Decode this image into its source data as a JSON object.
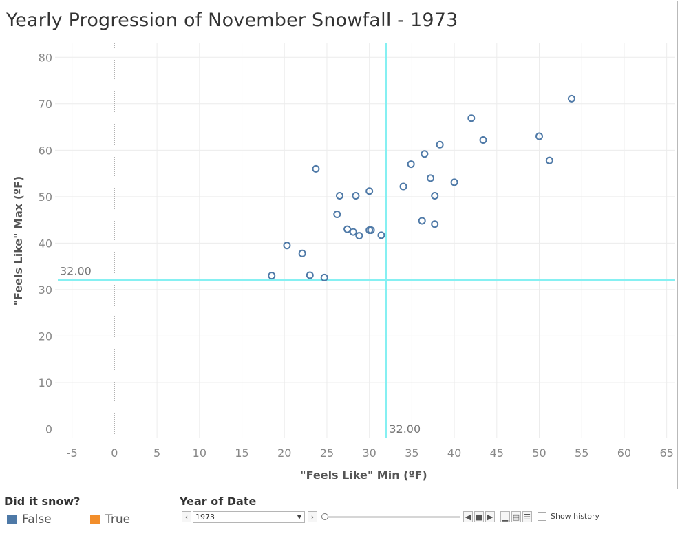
{
  "chart_data": {
    "type": "scatter",
    "title": "Yearly Progression of November Snowfall - 1973",
    "xlabel": "\"Feels Like\" Min (ºF)",
    "ylabel": "\"Feels Like\" Max (ºF)",
    "xlim": [
      -7,
      66
    ],
    "ylim": [
      -2,
      83
    ],
    "xticks": [
      -5,
      0,
      5,
      10,
      15,
      20,
      25,
      30,
      35,
      40,
      45,
      50,
      55,
      60,
      65
    ],
    "yticks": [
      0,
      10,
      20,
      30,
      40,
      50,
      60,
      70,
      80
    ],
    "grid": true,
    "reference_lines": [
      {
        "axis": "x",
        "value": 32,
        "label": "32.00"
      },
      {
        "axis": "y",
        "value": 32,
        "label": "32.00"
      }
    ],
    "series": [
      {
        "name": "False",
        "color": "#4e79a7",
        "points": [
          [
            18.5,
            33.0
          ],
          [
            20.3,
            39.5
          ],
          [
            22.1,
            37.8
          ],
          [
            23.0,
            33.1
          ],
          [
            24.7,
            32.6
          ],
          [
            23.7,
            56.0
          ],
          [
            26.2,
            46.2
          ],
          [
            26.5,
            50.2
          ],
          [
            27.4,
            43.0
          ],
          [
            28.1,
            42.4
          ],
          [
            28.4,
            50.2
          ],
          [
            28.8,
            41.6
          ],
          [
            30.0,
            42.8
          ],
          [
            30.2,
            42.8
          ],
          [
            30.0,
            51.2
          ],
          [
            31.4,
            41.7
          ],
          [
            34.0,
            52.2
          ],
          [
            34.9,
            57.0
          ],
          [
            36.2,
            44.8
          ],
          [
            36.5,
            59.2
          ],
          [
            37.2,
            54.0
          ],
          [
            37.7,
            50.2
          ],
          [
            37.7,
            44.1
          ],
          [
            38.3,
            61.2
          ],
          [
            40.0,
            53.1
          ],
          [
            42.0,
            66.9
          ],
          [
            43.4,
            62.2
          ],
          [
            50.0,
            63.0
          ],
          [
            51.2,
            57.8
          ],
          [
            53.8,
            71.1
          ]
        ]
      }
    ]
  },
  "legend": {
    "title": "Did it snow?",
    "items": [
      {
        "label": "False",
        "color": "#4e79a7"
      },
      {
        "label": "True",
        "color": "#f28e2b"
      }
    ]
  },
  "filter": {
    "title": "Year of Date",
    "selected_year": "1973",
    "show_history_label": "Show history",
    "show_history_checked": false
  }
}
